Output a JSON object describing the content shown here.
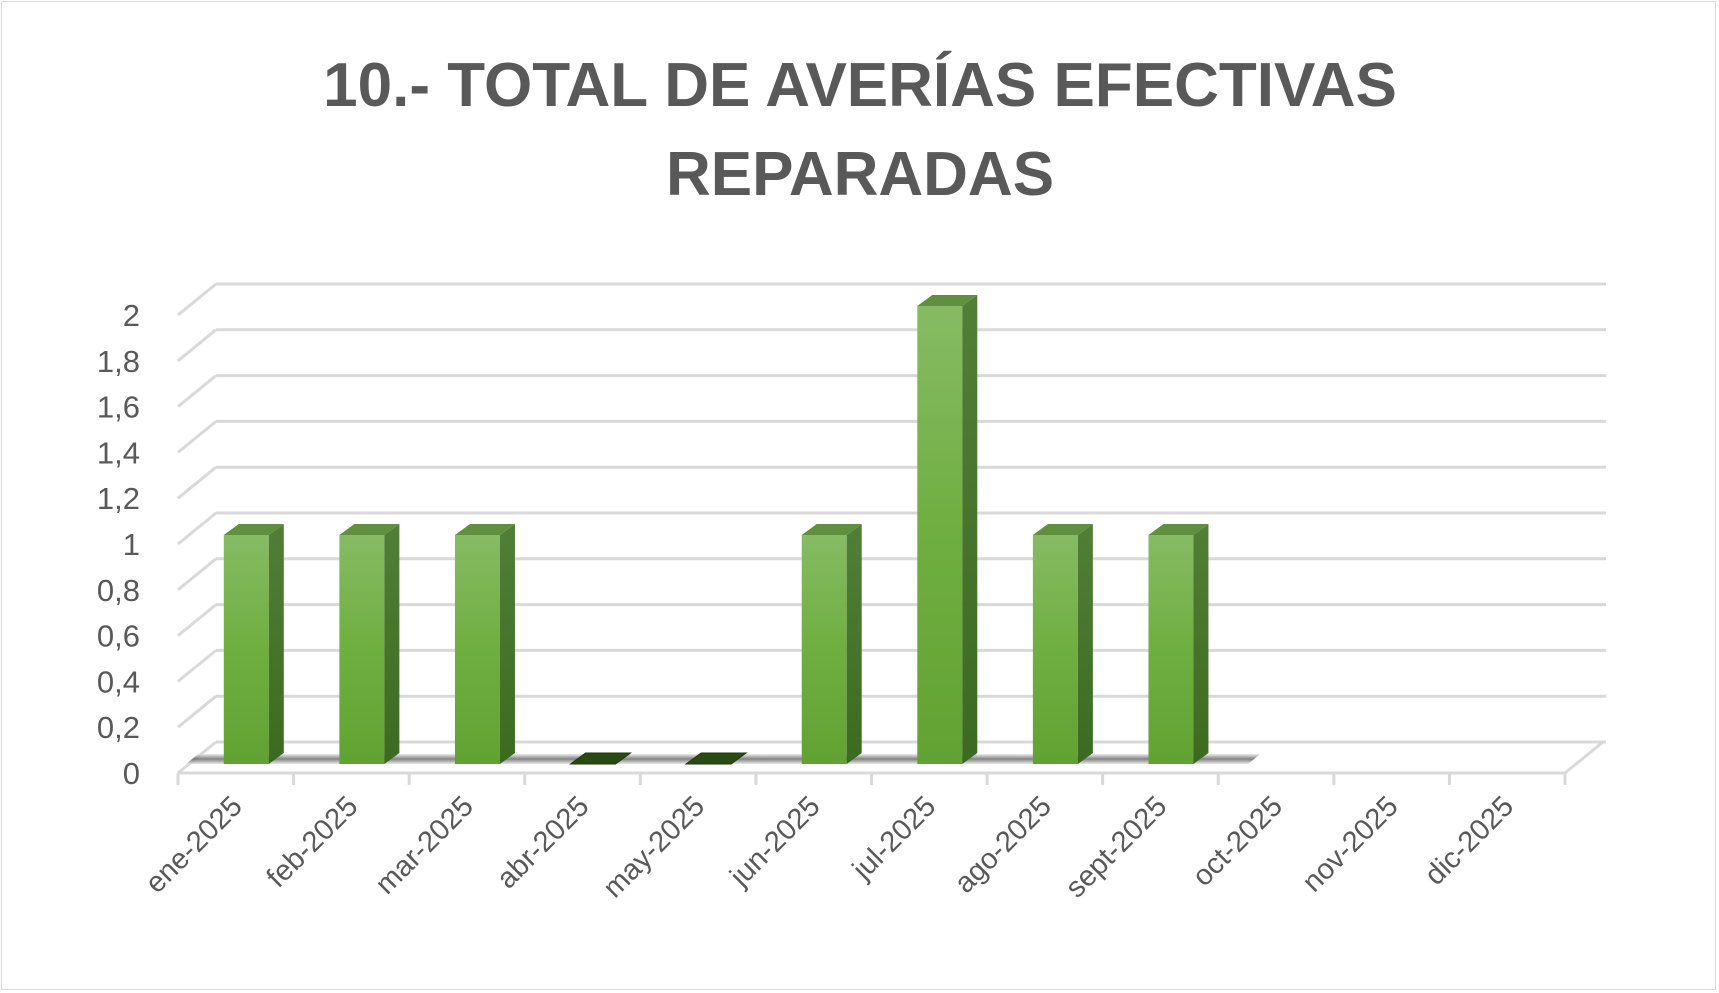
{
  "chart_data": {
    "type": "bar",
    "style": "3d-column",
    "title_lines": [
      "10.- TOTAL DE AVERÍAS EFECTIVAS",
      "REPARADAS"
    ],
    "categories": [
      "ene-2025",
      "feb-2025",
      "mar-2025",
      "abr-2025",
      "may-2025",
      "jun-2025",
      "jul-2025",
      "ago-2025",
      "sept-2025",
      "oct-2025",
      "nov-2025",
      "dic-2025"
    ],
    "values": [
      1,
      1,
      1,
      0,
      0,
      1,
      2,
      1,
      1,
      null,
      null,
      null
    ],
    "yticks": [
      "0",
      "0,2",
      "0,4",
      "0,6",
      "0,8",
      "1",
      "1,2",
      "1,4",
      "1,6",
      "1,8",
      "2"
    ],
    "ylim": [
      0,
      2
    ],
    "grid": true,
    "legend": "none",
    "xlabel": "",
    "ylabel": "",
    "colors": {
      "bar_front": "#70ad47",
      "bar_side": "#43702a",
      "bar_top": "#5f8f3f",
      "text": "#595959",
      "grid": "#d9d9d9"
    }
  }
}
